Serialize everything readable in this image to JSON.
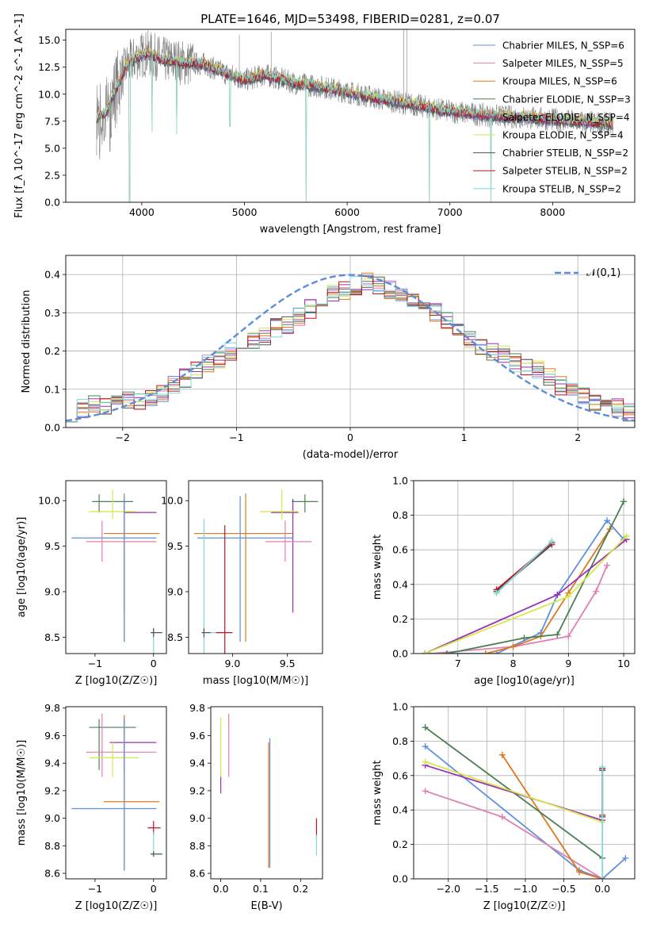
{
  "figure": {
    "title": "PLATE=1646, MJD=53498, FIBERID=0281, z=0.07"
  },
  "colors": {
    "chabrier_miles": "#5f8fde",
    "salpeter_miles": "#e07fb4",
    "kroupa_miles": "#e0761e",
    "chabrier_elodie": "#4d7f52",
    "salpeter_elodie": "#9b2fb5",
    "kroupa_elodie": "#d4e84a",
    "chabrier_stelib": "#555555",
    "salpeter_stelib": "#c0141e",
    "kroupa_stelib": "#7fd8d8",
    "data": "#808080",
    "gaussian": "#5b8dd8"
  },
  "chart_data": [
    {
      "id": "spectrum",
      "type": "line",
      "title": "PLATE=1646, MJD=53498, FIBERID=0281, z=0.07",
      "xlabel": "wavelength [Angstrom, rest frame]",
      "ylabel": "Flux [f_λ 10^-17 erg cm^-2 s^-1 A^-1]",
      "xlim": [
        3260,
        8800
      ],
      "ylim": [
        0,
        16
      ],
      "xticks": [
        "4000",
        "5000",
        "6000",
        "7000",
        "8000"
      ],
      "yticks": [
        "0.0",
        "2.5",
        "5.0",
        "7.5",
        "10.0",
        "12.5",
        "15.0"
      ],
      "legend_position": "top-right",
      "legend": [
        {
          "label": "Chabrier MILES, N_SSP=6",
          "color": "#5f8fde"
        },
        {
          "label": "Salpeter MILES, N_SSP=5",
          "color": "#e07fb4"
        },
        {
          "label": "Kroupa MILES, N_SSP=6",
          "color": "#e0761e"
        },
        {
          "label": "Chabrier ELODIE, N_SSP=3",
          "color": "#4d7f52"
        },
        {
          "label": "Salpeter ELODIE, N_SSP=4",
          "color": "#9b2fb5"
        },
        {
          "label": "Kroupa ELODIE, N_SSP=4",
          "color": "#d4e84a"
        },
        {
          "label": "Chabrier STELIB, N_SSP=2",
          "color": "#555555"
        },
        {
          "label": "Salpeter STELIB, N_SSP=2",
          "color": "#c0141e"
        },
        {
          "label": "Kroupa STELIB, N_SSP=2",
          "color": "#7fd8d8"
        }
      ],
      "model_continuum": [
        [
          3550,
          7.8
        ],
        [
          3650,
          8.3
        ],
        [
          3750,
          10.5
        ],
        [
          3850,
          12.6
        ],
        [
          3950,
          13.4
        ],
        [
          4050,
          13.8
        ],
        [
          4200,
          13.2
        ],
        [
          4400,
          12.9
        ],
        [
          4600,
          12.8
        ],
        [
          4800,
          12.0
        ],
        [
          5000,
          11.3
        ],
        [
          5200,
          11.8
        ],
        [
          5500,
          11.0
        ],
        [
          5800,
          10.6
        ],
        [
          6000,
          10.2
        ],
        [
          6300,
          9.6
        ],
        [
          6600,
          9.1
        ],
        [
          7000,
          8.4
        ],
        [
          7400,
          8.0
        ],
        [
          7800,
          7.8
        ],
        [
          8200,
          7.5
        ],
        [
          8500,
          7.3
        ],
        [
          8600,
          7.2
        ]
      ],
      "absorption_dips": [
        {
          "x": 3880,
          "y": 0.0
        },
        {
          "x": 4100,
          "y": 6.5
        },
        {
          "x": 4340,
          "y": 6.3
        },
        {
          "x": 4860,
          "y": 7.0
        },
        {
          "x": 5600,
          "y": 0.0
        },
        {
          "x": 6800,
          "y": 0.0
        },
        {
          "x": 7400,
          "y": 0.0
        }
      ]
    },
    {
      "id": "residuals",
      "type": "line",
      "xlabel": "(data-model)/error",
      "ylabel": "Normed distribution",
      "xlim": [
        -2.5,
        2.5
      ],
      "ylim": [
        0,
        0.45
      ],
      "xticks": [
        -2,
        -1,
        0,
        1,
        2
      ],
      "yticks": [
        "0.0",
        "0.1",
        "0.2",
        "0.3",
        "0.4"
      ],
      "grid": true,
      "legend_position": "top-right",
      "gaussian_label": "𝒩(0,1)",
      "bin_width": 0.1,
      "bins_start": -2.5,
      "histogram_base": [
        0.04,
        0.05,
        0.06,
        0.06,
        0.06,
        0.07,
        0.07,
        0.08,
        0.09,
        0.11,
        0.13,
        0.15,
        0.17,
        0.18,
        0.2,
        0.21,
        0.23,
        0.24,
        0.26,
        0.27,
        0.29,
        0.31,
        0.33,
        0.35,
        0.36,
        0.37,
        0.38,
        0.37,
        0.36,
        0.35,
        0.34,
        0.32,
        0.3,
        0.28,
        0.25,
        0.23,
        0.21,
        0.2,
        0.19,
        0.17,
        0.16,
        0.15,
        0.13,
        0.11,
        0.1,
        0.08,
        0.07,
        0.06,
        0.05,
        0.04
      ]
    },
    {
      "id": "age_vs_z",
      "type": "scatter",
      "xlabel": "Z [log10(Z/Z☉)]",
      "ylabel": "age [log10(age/yr)]",
      "xlim": [
        -1.5,
        0.22
      ],
      "ylim": [
        8.32,
        10.22
      ],
      "xticks": [
        -1,
        0
      ],
      "yticks": [
        "8.5",
        "9.0",
        "9.5",
        "10.0"
      ],
      "points": [
        {
          "c": "#4d7f52",
          "x": -0.93,
          "y": 9.99,
          "xe": [
            -1.05,
            -0.35
          ],
          "ye": [
            9.87,
            10.07
          ]
        },
        {
          "c": "#9b2fb5",
          "x": -0.5,
          "y": 9.87,
          "xe": [
            -0.5,
            0.05
          ],
          "ye": [
            8.77,
            10.02
          ]
        },
        {
          "c": "#d4e84a",
          "x": -0.7,
          "y": 9.88,
          "xe": [
            -1.1,
            -0.3
          ],
          "ye": [
            9.8,
            10.12
          ]
        },
        {
          "c": "#e0761e",
          "x": -0.5,
          "y": 9.64,
          "xe": [
            -0.85,
            0.1
          ],
          "ye": [
            8.45,
            10.08
          ]
        },
        {
          "c": "#5f8fde",
          "x": -0.5,
          "y": 9.59,
          "xe": [
            -1.4,
            0.05
          ],
          "ye": [
            8.45,
            10.05
          ]
        },
        {
          "c": "#e07fb4",
          "x": -0.88,
          "y": 9.55,
          "xe": [
            -1.15,
            0.05
          ],
          "ye": [
            9.33,
            9.78
          ]
        },
        {
          "c": "#7fd8d8",
          "x": 0.0,
          "y": 8.55,
          "xe": [
            -0.05,
            0.15
          ],
          "ye": [
            8.3,
            8.6
          ]
        },
        {
          "c": "#555555",
          "x": 0.0,
          "y": 8.55,
          "xe": [
            -0.05,
            0.15
          ],
          "ye": [
            8.5,
            8.6
          ]
        }
      ]
    },
    {
      "id": "age_vs_mass",
      "type": "scatter",
      "xlabel": "mass [log10(M/M☉)]",
      "ylabel": "",
      "xlim": [
        8.6,
        9.82
      ],
      "ylim": [
        8.32,
        10.22
      ],
      "xticks": [
        "9.0",
        "9.5"
      ],
      "yticks": [
        "8.5",
        "9.0",
        "9.5",
        "10.0"
      ],
      "points": [
        {
          "c": "#4d7f52",
          "x": 9.66,
          "y": 9.99,
          "xe": [
            9.54,
            9.78
          ],
          "ye": [
            9.87,
            10.07
          ]
        },
        {
          "c": "#9b2fb5",
          "x": 9.55,
          "y": 9.87,
          "xe": [
            9.35,
            9.6
          ],
          "ye": [
            8.77,
            10.02
          ]
        },
        {
          "c": "#d4e84a",
          "x": 9.45,
          "y": 9.88,
          "xe": [
            9.25,
            9.6
          ],
          "ye": [
            9.8,
            10.12
          ]
        },
        {
          "c": "#e0761e",
          "x": 9.12,
          "y": 9.64,
          "xe": [
            8.65,
            9.55
          ],
          "ye": [
            8.45,
            10.08
          ]
        },
        {
          "c": "#5f8fde",
          "x": 9.07,
          "y": 9.59,
          "xe": [
            8.68,
            9.55
          ],
          "ye": [
            8.45,
            10.05
          ]
        },
        {
          "c": "#e07fb4",
          "x": 9.48,
          "y": 9.55,
          "xe": [
            9.3,
            9.72
          ],
          "ye": [
            9.33,
            9.78
          ]
        },
        {
          "c": "#7fd8d8",
          "x": 8.74,
          "y": 8.55,
          "xe": [
            8.72,
            8.9
          ],
          "ye": [
            8.3,
            9.8
          ]
        },
        {
          "c": "#c0141e",
          "x": 8.93,
          "y": 8.55,
          "xe": [
            8.85,
            9.0
          ],
          "ye": [
            8.3,
            9.73
          ]
        },
        {
          "c": "#555555",
          "x": 8.74,
          "y": 8.55,
          "xe": [
            8.72,
            8.8
          ],
          "ye": [
            8.5,
            8.6
          ]
        }
      ]
    },
    {
      "id": "mass_weight_vs_age",
      "type": "line",
      "xlabel": "age [log10(age/yr)]",
      "ylabel": "mass weight",
      "xlim": [
        6.2,
        10.2
      ],
      "ylim": [
        0,
        1
      ],
      "xticks": [
        7,
        8,
        9,
        10
      ],
      "yticks": [
        "0.0",
        "0.2",
        "0.4",
        "0.6",
        "0.8",
        "1.0"
      ],
      "grid": true,
      "series": [
        {
          "c": "#5f8fde",
          "pts": [
            [
              6.4,
              0.0
            ],
            [
              7.7,
              0.0
            ],
            [
              8.5,
              0.12
            ],
            [
              8.8,
              0.34
            ],
            [
              9.7,
              0.77
            ],
            [
              10.0,
              0.66
            ]
          ]
        },
        {
          "c": "#e07fb4",
          "pts": [
            [
              6.5,
              0.0
            ],
            [
              8.0,
              0.04
            ],
            [
              9.0,
              0.1
            ],
            [
              9.5,
              0.36
            ],
            [
              9.7,
              0.51
            ]
          ]
        },
        {
          "c": "#e0761e",
          "pts": [
            [
              7.5,
              0.0
            ],
            [
              8.0,
              0.04
            ],
            [
              8.5,
              0.1
            ],
            [
              9.0,
              0.35
            ],
            [
              9.75,
              0.72
            ]
          ]
        },
        {
          "c": "#4d7f52",
          "pts": [
            [
              6.8,
              0.0
            ],
            [
              8.2,
              0.09
            ],
            [
              8.8,
              0.11
            ],
            [
              10.0,
              0.88
            ]
          ]
        },
        {
          "c": "#9b2fb5",
          "pts": [
            [
              6.4,
              0.0
            ],
            [
              8.8,
              0.34
            ],
            [
              10.05,
              0.66
            ]
          ]
        },
        {
          "c": "#d4e84a",
          "pts": [
            [
              6.4,
              0.0
            ],
            [
              9.0,
              0.33
            ],
            [
              10.05,
              0.68
            ]
          ]
        },
        {
          "c": "#555555",
          "pts": [
            [
              7.7,
              0.36
            ],
            [
              8.7,
              0.63
            ]
          ]
        },
        {
          "c": "#c0141e",
          "pts": [
            [
              7.7,
              0.37
            ],
            [
              8.7,
              0.64
            ]
          ]
        },
        {
          "c": "#7fd8d8",
          "pts": [
            [
              7.7,
              0.35
            ],
            [
              8.7,
              0.65
            ]
          ]
        }
      ]
    },
    {
      "id": "mass_vs_z",
      "type": "scatter",
      "xlabel": "Z [log10(Z/Z☉)]",
      "ylabel": "mass [log10(M/M☉)]",
      "xlim": [
        -1.5,
        0.22
      ],
      "ylim": [
        8.56,
        9.81
      ],
      "xticks": [
        -1,
        0
      ],
      "yticks": [
        "8.6",
        "8.8",
        "9.0",
        "9.2",
        "9.4",
        "9.6",
        "9.8"
      ],
      "points": [
        {
          "c": "#4d7f52",
          "x": -0.93,
          "y": 9.66,
          "xe": [
            -1.1,
            -0.3
          ],
          "ye": [
            9.35,
            9.72
          ]
        },
        {
          "c": "#9b2fb5",
          "x": -0.5,
          "y": 9.55,
          "xe": [
            -0.75,
            0.05
          ],
          "ye": [
            9.35,
            9.73
          ]
        },
        {
          "c": "#e07fb4",
          "x": -0.88,
          "y": 9.48,
          "xe": [
            -1.15,
            0.05
          ],
          "ye": [
            9.3,
            9.76
          ]
        },
        {
          "c": "#d4e84a",
          "x": -0.7,
          "y": 9.44,
          "xe": [
            -1.1,
            -0.25
          ],
          "ye": [
            9.3,
            9.55
          ]
        },
        {
          "c": "#e0761e",
          "x": -0.5,
          "y": 9.12,
          "xe": [
            -0.85,
            0.1
          ],
          "ye": [
            8.62,
            9.75
          ]
        },
        {
          "c": "#5f8fde",
          "x": -0.5,
          "y": 9.07,
          "xe": [
            -1.4,
            0.05
          ],
          "ye": [
            8.62,
            9.72
          ]
        },
        {
          "c": "#c0141e",
          "x": 0.0,
          "y": 8.93,
          "xe": [
            -0.1,
            0.12
          ],
          "ye": [
            8.88,
            8.98
          ]
        },
        {
          "c": "#7fd8d8",
          "x": 0.0,
          "y": 8.74,
          "xe": [
            -0.05,
            0.15
          ],
          "ye": [
            8.72,
            8.9
          ]
        },
        {
          "c": "#555555",
          "x": 0.0,
          "y": 8.74,
          "xe": [
            -0.05,
            0.15
          ],
          "ye": [
            8.72,
            8.76
          ]
        }
      ]
    },
    {
      "id": "mass_vs_ebv",
      "type": "scatter",
      "xlabel": "E(B-V)",
      "ylabel": "",
      "xlim": [
        -0.025,
        0.255
      ],
      "ylim": [
        8.56,
        9.81
      ],
      "xticks": [
        "0.0",
        "0.1",
        "0.2"
      ],
      "yticks": [
        "8.6",
        "8.8",
        "9.0",
        "9.2",
        "9.4",
        "9.6",
        "9.8"
      ],
      "points": [
        {
          "c": "#d4e84a",
          "x": 0.0,
          "y": 9.45,
          "xe": [
            0.0,
            0.0
          ],
          "ye": [
            9.27,
            9.73
          ]
        },
        {
          "c": "#9b2fb5",
          "x": 0.0,
          "y": 9.55,
          "xe": [
            0.0,
            0.0
          ],
          "ye": [
            9.18,
            9.3
          ]
        },
        {
          "c": "#e07fb4",
          "x": 0.02,
          "y": 9.48,
          "xe": [
            0.02,
            0.02
          ],
          "ye": [
            9.3,
            9.76
          ]
        },
        {
          "c": "#e0761e",
          "x": 0.12,
          "y": 9.12,
          "xe": [
            0.12,
            0.12
          ],
          "ye": [
            8.64,
            9.55
          ]
        },
        {
          "c": "#5f8fde",
          "x": 0.123,
          "y": 9.07,
          "xe": [
            0.123,
            0.123
          ],
          "ye": [
            8.64,
            9.58
          ]
        },
        {
          "c": "#c0141e",
          "x": 0.24,
          "y": 8.93,
          "xe": [
            0.24,
            0.24
          ],
          "ye": [
            8.86,
            9.0
          ]
        },
        {
          "c": "#7fd8d8",
          "x": 0.24,
          "y": 8.8,
          "xe": [
            0.24,
            0.24
          ],
          "ye": [
            8.73,
            8.88
          ]
        }
      ]
    },
    {
      "id": "mass_weight_vs_z",
      "type": "line",
      "xlabel": "Z [log10(Z/Z☉)]",
      "ylabel": "mass weight",
      "xlim": [
        -2.45,
        0.42
      ],
      "ylim": [
        0,
        1
      ],
      "xticks": [
        "−2.0",
        "−1.5",
        "−1.0",
        "−0.5",
        "0.0"
      ],
      "yticks": [
        "0.0",
        "0.2",
        "0.4",
        "0.6",
        "0.8",
        "1.0"
      ],
      "grid": true,
      "series": [
        {
          "c": "#5f8fde",
          "pts": [
            [
              -2.3,
              0.77
            ],
            [
              -0.3,
              0.05
            ],
            [
              0.0,
              0.0
            ],
            [
              0.3,
              0.12
            ]
          ]
        },
        {
          "c": "#e07fb4",
          "pts": [
            [
              -2.3,
              0.51
            ],
            [
              -1.3,
              0.36
            ],
            [
              0.0,
              0.0
            ]
          ]
        },
        {
          "c": "#e0761e",
          "pts": [
            [
              -1.3,
              0.72
            ],
            [
              -0.3,
              0.04
            ],
            [
              0.0,
              0.0
            ]
          ]
        },
        {
          "c": "#4d7f52",
          "pts": [
            [
              -2.3,
              0.88
            ],
            [
              0.0,
              0.12
            ]
          ]
        },
        {
          "c": "#9b2fb5",
          "pts": [
            [
              -2.3,
              0.66
            ],
            [
              0.0,
              0.34
            ]
          ]
        },
        {
          "c": "#d4e84a",
          "pts": [
            [
              -2.3,
              0.68
            ],
            [
              0.0,
              0.33
            ]
          ]
        },
        {
          "c": "#555555",
          "pts": [
            [
              0.0,
              0.36
            ],
            [
              0.0,
              0.63
            ]
          ]
        },
        {
          "c": "#c0141e",
          "pts": [
            [
              0.0,
              0.37
            ],
            [
              0.0,
              0.64
            ]
          ]
        },
        {
          "c": "#7fd8d8",
          "pts": [
            [
              0.0,
              0.0
            ],
            [
              0.0,
              0.65
            ]
          ]
        }
      ]
    }
  ]
}
